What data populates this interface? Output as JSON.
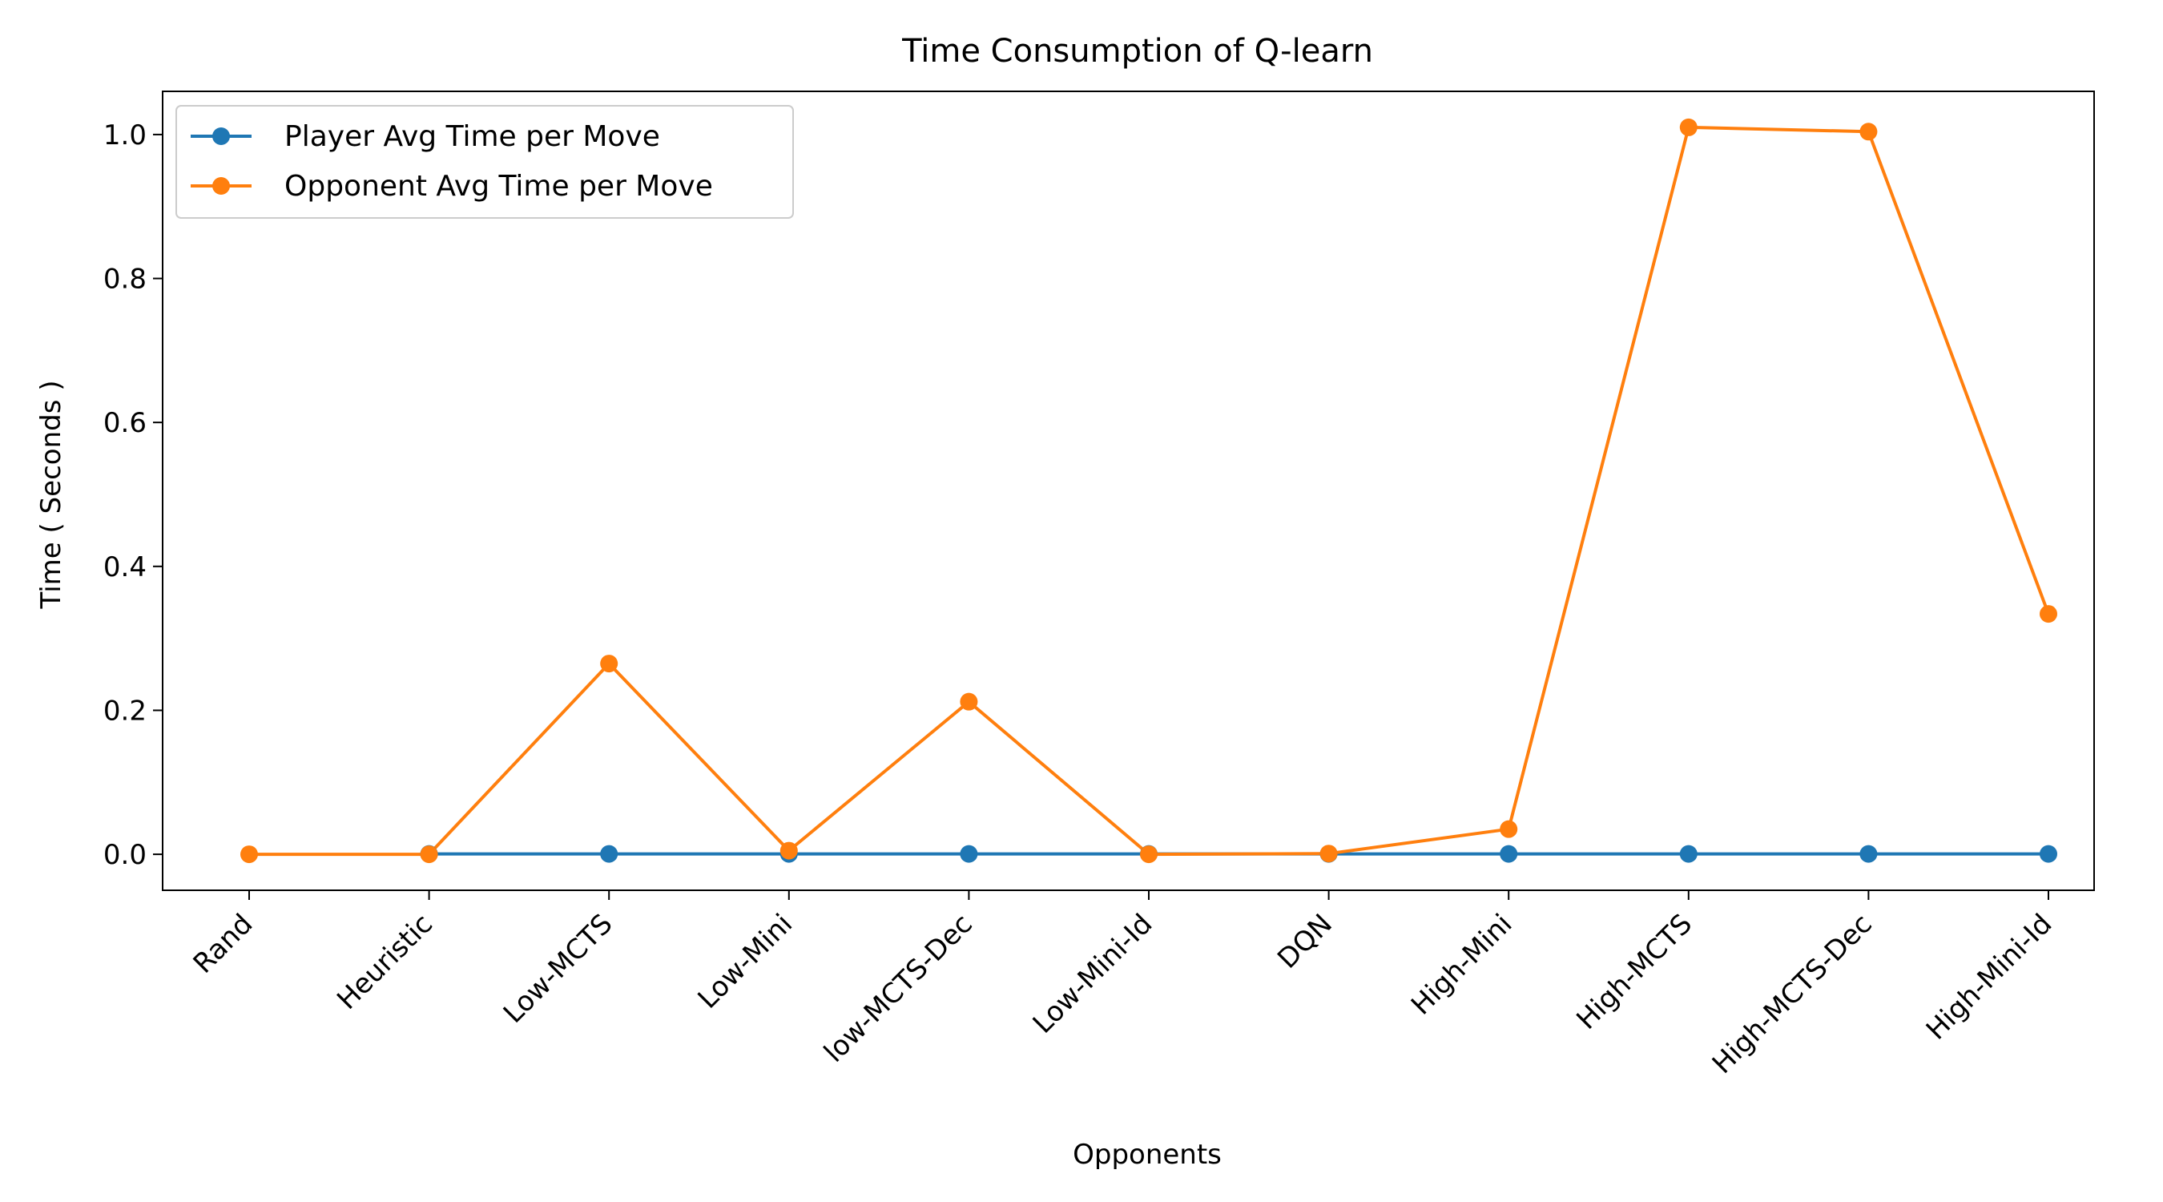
{
  "chart_data": {
    "type": "line",
    "title": "Time Consumption of Q-learn",
    "xlabel": "Opponents",
    "ylabel": "Time ( Seconds )",
    "categories": [
      "Rand",
      "Heuristic",
      "Low-MCTS",
      "Low-Mini",
      "low-MCTS-Dec",
      "Low-Mini-Id",
      "DQN",
      "High-Mini",
      "High-MCTS",
      "High-MCTS-Dec",
      "High-Mini-Id"
    ],
    "ylim": [
      -0.05,
      1.06
    ],
    "yticks": [
      0.0,
      0.2,
      0.4,
      0.6,
      0.8,
      1.0
    ],
    "ytick_labels": [
      "0.0",
      "0.2",
      "0.4",
      "0.6",
      "0.8",
      "1.0"
    ],
    "grid": false,
    "legend_position": "top-left",
    "series": [
      {
        "name": "Player Avg Time per Move",
        "color": "#1f77b4",
        "values": [
          null,
          0.0005,
          0.0005,
          0.0005,
          0.0005,
          0.0005,
          0.0005,
          0.0005,
          0.0005,
          0.0005,
          0.0005
        ]
      },
      {
        "name": "Opponent Avg Time per Move",
        "color": "#ff7f0e",
        "values": [
          0.0,
          0.0,
          0.265,
          0.005,
          0.212,
          0.0,
          0.001,
          0.035,
          1.01,
          1.004,
          0.334
        ]
      }
    ]
  }
}
